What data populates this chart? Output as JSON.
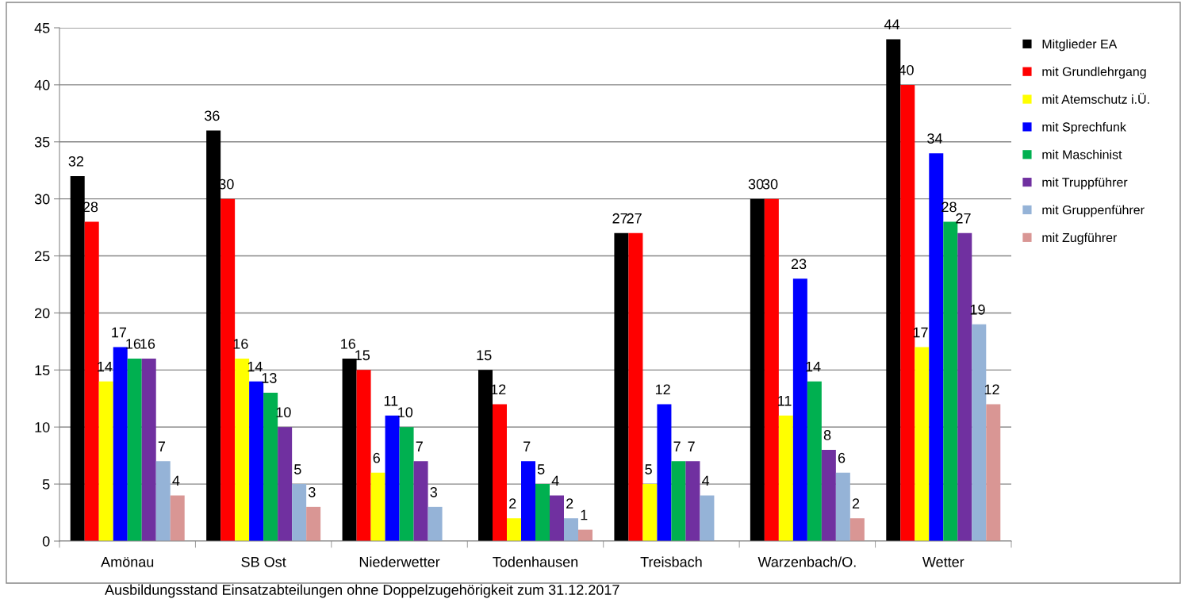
{
  "chart_data": {
    "type": "bar",
    "categories": [
      "Amönau",
      "SB Ost",
      "Niederwetter",
      "Todenhausen",
      "Treisbach",
      "Warzenbach/O.",
      "Wetter"
    ],
    "series": [
      {
        "name": "Mitglieder EA",
        "color": "#000000",
        "values": [
          32,
          36,
          16,
          15,
          27,
          30,
          44
        ]
      },
      {
        "name": "mit Grundlehrgang",
        "color": "#ff0000",
        "values": [
          28,
          30,
          15,
          12,
          27,
          30,
          40
        ]
      },
      {
        "name": "mit Atemschutz i.Ü.",
        "color": "#ffff00",
        "values": [
          14,
          16,
          6,
          2,
          5,
          11,
          17
        ]
      },
      {
        "name": "mit Sprechfunk",
        "color": "#0000ff",
        "values": [
          17,
          14,
          11,
          7,
          12,
          23,
          34
        ]
      },
      {
        "name": "mit Maschinist",
        "color": "#00b050",
        "values": [
          16,
          13,
          10,
          5,
          7,
          14,
          28
        ]
      },
      {
        "name": "mit Truppführer",
        "color": "#7030a0",
        "values": [
          16,
          10,
          7,
          4,
          7,
          8,
          27
        ]
      },
      {
        "name": "mit Gruppenführer",
        "color": "#95b3d7",
        "values": [
          7,
          5,
          3,
          2,
          4,
          6,
          19
        ]
      },
      {
        "name": "mit Zugführer",
        "color": "#d99694",
        "values": [
          4,
          3,
          null,
          1,
          null,
          2,
          12
        ]
      }
    ],
    "ylim": [
      0,
      45
    ],
    "yticks": [
      0,
      5,
      10,
      15,
      20,
      25,
      30,
      35,
      40,
      45
    ],
    "grid": "y",
    "legend": "right",
    "data_labels": true,
    "annotations": [
      "Ausbildungsstand Einsatzabteilungen ohne Doppelzugehörigkeit zum 31.12.2017"
    ]
  }
}
